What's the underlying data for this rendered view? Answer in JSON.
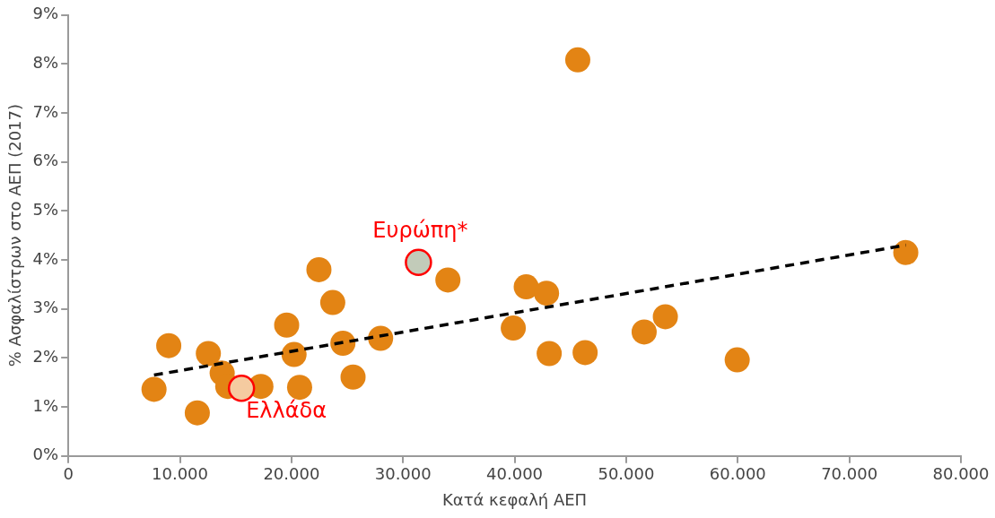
{
  "chart_data": {
    "type": "scatter",
    "xlabel": "Κατά κεφαλή ΑΕΠ",
    "ylabel": "% Ασφαλίστρων στο ΑΕΠ (2017)",
    "xlim": [
      0,
      80000
    ],
    "xticks": [
      0,
      {
        "value": 10000,
        "label": "10.000"
      },
      {
        "value": 20000,
        "label": "20.000"
      },
      {
        "value": 30000,
        "label": "30.000"
      },
      {
        "value": 40000,
        "label": "40.000"
      },
      {
        "value": 50000,
        "label": "50.000"
      },
      {
        "value": 60000,
        "label": "60.000"
      },
      {
        "value": 70000,
        "label": "70.000"
      },
      {
        "value": 80000,
        "label": "80.000"
      }
    ],
    "ylim": [
      0,
      9
    ],
    "yticks": [
      {
        "value": 0,
        "label": "0%"
      },
      {
        "value": 1,
        "label": "1%"
      },
      {
        "value": 2,
        "label": "2%"
      },
      {
        "value": 3,
        "label": "3%"
      },
      {
        "value": 4,
        "label": "4%"
      },
      {
        "value": 5,
        "label": "5%"
      },
      {
        "value": 6,
        "label": "6%"
      },
      {
        "value": 7,
        "label": "7%"
      },
      {
        "value": 8,
        "label": "8%"
      },
      {
        "value": 9,
        "label": "9%"
      }
    ],
    "grid": false,
    "legend": false,
    "marker": "circle",
    "series": [
      {
        "type": "line",
        "color": "#000000",
        "line_style": "dashed",
        "marker": "none",
        "x": [
          7680,
          75060
        ],
        "values": [
          1.65,
          4.3
        ]
      },
      {
        "color": "#e38414",
        "x": [
          7680,
          9000,
          11560,
          12550,
          13790,
          14290,
          17260,
          19570,
          20230,
          20730,
          22460,
          23700,
          24610,
          25520,
          27990,
          34020,
          39880,
          41040,
          42860,
          43100,
          45660,
          46320,
          51610,
          53510,
          59950,
          75060
        ],
        "values": [
          1.36,
          2.25,
          0.88,
          2.09,
          1.69,
          1.42,
          1.42,
          2.67,
          2.07,
          1.4,
          3.8,
          3.13,
          2.3,
          1.61,
          2.4,
          3.59,
          2.61,
          3.45,
          3.32,
          2.09,
          8.08,
          2.11,
          2.53,
          2.84,
          1.96,
          4.15
        ]
      },
      {
        "name": "Ελλάδα",
        "color": "#f5cba0",
        "x": [
          15520
        ],
        "values": [
          1.38
        ]
      },
      {
        "name": "Ευρώπη*",
        "color": "#c2cbb9",
        "x": [
          31380
        ],
        "values": [
          3.95
        ]
      }
    ]
  }
}
